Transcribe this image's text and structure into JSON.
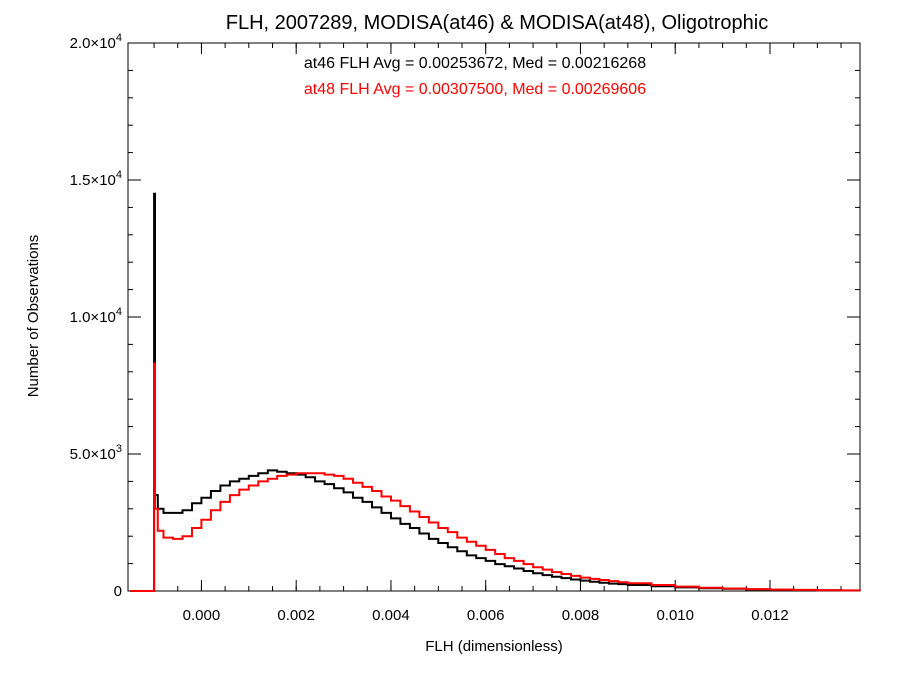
{
  "chart_data": {
    "type": "line",
    "title": "FLH, 2007289, MODISA(at46) & MODISA(at48), Oligotrophic",
    "xlabel": "FLH (dimensionless)",
    "ylabel": "Number of Observations",
    "xlim": [
      -0.00155,
      0.0139
    ],
    "ylim": [
      0,
      20000
    ],
    "x_ticks": [
      {
        "value": 0.0,
        "label": "0.000"
      },
      {
        "value": 0.002,
        "label": "0.002"
      },
      {
        "value": 0.004,
        "label": "0.004"
      },
      {
        "value": 0.006,
        "label": "0.006"
      },
      {
        "value": 0.008,
        "label": "0.008"
      },
      {
        "value": 0.01,
        "label": "0.010"
      },
      {
        "value": 0.012,
        "label": "0.012"
      }
    ],
    "y_ticks": [
      {
        "value": 0,
        "mantissa": "0",
        "exponent": ""
      },
      {
        "value": 5000,
        "mantissa": "5.0×10",
        "exponent": "3"
      },
      {
        "value": 10000,
        "mantissa": "1.0×10",
        "exponent": "4"
      },
      {
        "value": 15000,
        "mantissa": "1.5×10",
        "exponent": "4"
      },
      {
        "value": 20000,
        "mantissa": "2.0×10",
        "exponent": "4"
      }
    ],
    "annotations": [
      {
        "text": "at46 FLH Avg = 0.00253672, Med = 0.00216268",
        "color": "#000000"
      },
      {
        "text": "at48 FLH Avg = 0.00307500, Med = 0.00269606",
        "color": "#ff0000"
      }
    ],
    "series": [
      {
        "color": "#000000",
        "x": [
          -0.0015,
          -0.00102,
          -0.001,
          -0.00098,
          -0.00092,
          -0.0008,
          -0.0006,
          -0.0004,
          -0.0002,
          0.0,
          0.0002,
          0.0004,
          0.0006,
          0.0008,
          0.001,
          0.0012,
          0.0014,
          0.0016,
          0.0018,
          0.002,
          0.0022,
          0.0024,
          0.0026,
          0.0028,
          0.003,
          0.0032,
          0.0034,
          0.0036,
          0.0038,
          0.004,
          0.0042,
          0.0044,
          0.0046,
          0.0048,
          0.005,
          0.0052,
          0.0054,
          0.0056,
          0.0058,
          0.006,
          0.0062,
          0.0064,
          0.0066,
          0.0068,
          0.007,
          0.0072,
          0.0074,
          0.0076,
          0.0078,
          0.008,
          0.0082,
          0.0084,
          0.0086,
          0.0088,
          0.009,
          0.0095,
          0.01,
          0.0105,
          0.011,
          0.0115,
          0.012,
          0.0125,
          0.013,
          0.0135,
          0.0139
        ],
        "y": [
          0,
          0,
          14500,
          3500,
          3000,
          2850,
          2850,
          2950,
          3200,
          3400,
          3650,
          3850,
          4000,
          4100,
          4200,
          4300,
          4400,
          4350,
          4300,
          4250,
          4150,
          4000,
          3900,
          3750,
          3600,
          3400,
          3250,
          3050,
          2850,
          2650,
          2450,
          2300,
          2100,
          1900,
          1750,
          1600,
          1450,
          1300,
          1200,
          1100,
          980,
          900,
          820,
          730,
          650,
          580,
          520,
          470,
          420,
          380,
          340,
          300,
          270,
          250,
          220,
          170,
          130,
          100,
          80,
          60,
          45,
          35,
          25,
          20,
          15
        ]
      },
      {
        "color": "#ff0000",
        "x": [
          -0.0015,
          -0.00102,
          -0.001,
          -0.00098,
          -0.00092,
          -0.0008,
          -0.0006,
          -0.0004,
          -0.0002,
          0.0,
          0.0002,
          0.0004,
          0.0006,
          0.0008,
          0.001,
          0.0012,
          0.0014,
          0.0016,
          0.0018,
          0.002,
          0.0022,
          0.0024,
          0.0026,
          0.0028,
          0.003,
          0.0032,
          0.0034,
          0.0036,
          0.0038,
          0.004,
          0.0042,
          0.0044,
          0.0046,
          0.0048,
          0.005,
          0.0052,
          0.0054,
          0.0056,
          0.0058,
          0.006,
          0.0062,
          0.0064,
          0.0066,
          0.0068,
          0.007,
          0.0072,
          0.0074,
          0.0076,
          0.0078,
          0.008,
          0.0082,
          0.0084,
          0.0086,
          0.0088,
          0.009,
          0.0095,
          0.01,
          0.0105,
          0.011,
          0.0115,
          0.012,
          0.0125,
          0.013,
          0.0135,
          0.0139
        ],
        "y": [
          0,
          0,
          8300,
          3000,
          2200,
          1950,
          1900,
          2000,
          2300,
          2600,
          2950,
          3250,
          3500,
          3700,
          3850,
          4000,
          4100,
          4200,
          4250,
          4300,
          4300,
          4300,
          4250,
          4200,
          4100,
          3950,
          3800,
          3650,
          3450,
          3300,
          3100,
          2900,
          2700,
          2500,
          2300,
          2150,
          1950,
          1800,
          1650,
          1500,
          1350,
          1200,
          1100,
          980,
          870,
          780,
          690,
          620,
          550,
          490,
          440,
          400,
          360,
          320,
          280,
          220,
          160,
          120,
          90,
          70,
          50,
          40,
          30,
          22,
          15
        ]
      }
    ]
  }
}
